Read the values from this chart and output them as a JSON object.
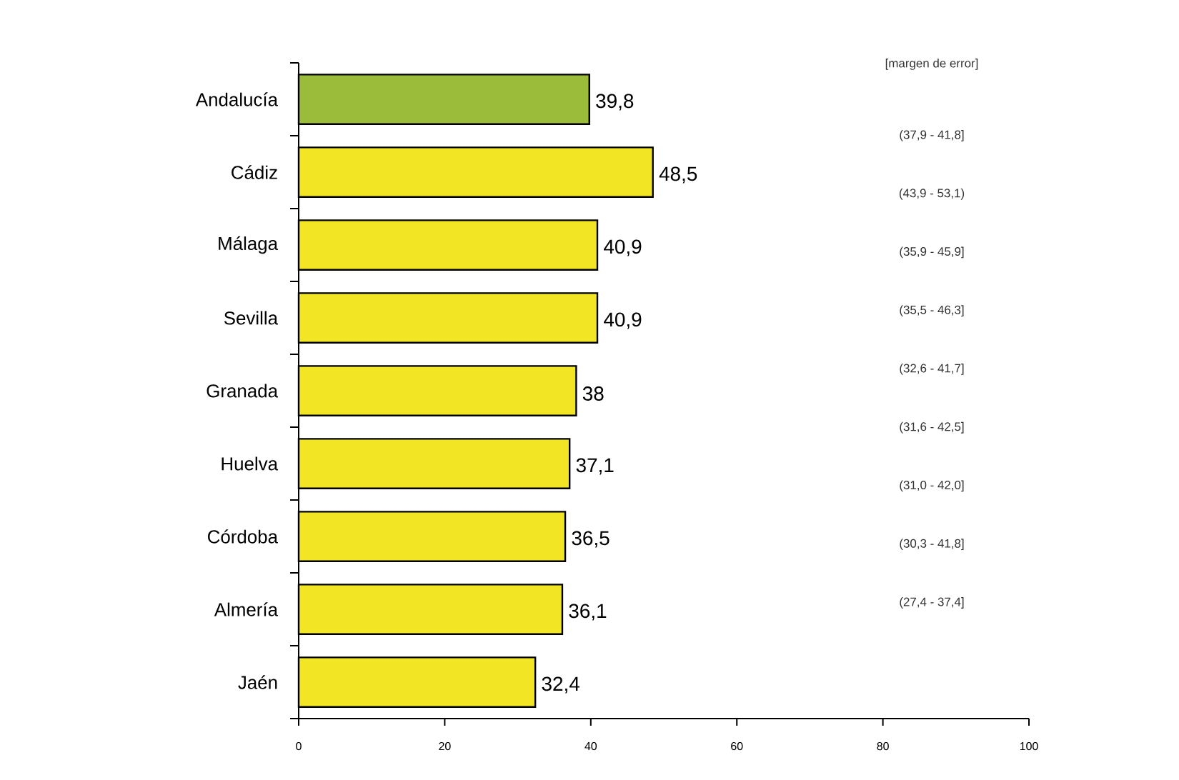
{
  "chart_data": {
    "type": "bar",
    "orientation": "horizontal",
    "categories": [
      "Andalucía",
      "Cádiz",
      "Málaga",
      "Sevilla",
      "Granada",
      "Huelva",
      "Córdoba",
      "Almería",
      "Jaén"
    ],
    "values": [
      39.8,
      48.5,
      40.9,
      40.9,
      38,
      37.1,
      36.5,
      36.1,
      32.4
    ],
    "value_labels": [
      "39,8",
      "48,5",
      "40,9",
      "40,9",
      "38",
      "37,1",
      "36,5",
      "36,1",
      "32,4"
    ],
    "colors": [
      "#9bbb3b",
      "#f2e524",
      "#f2e524",
      "#f2e524",
      "#f2e524",
      "#f2e524",
      "#f2e524",
      "#f2e524",
      "#f2e524"
    ],
    "xlim": [
      0,
      100
    ],
    "xticks": [
      0,
      20,
      40,
      60,
      80,
      100
    ],
    "annotations": [
      "[margen de error]",
      "(37,9 - 41,8]",
      "(43,9 - 53,1)",
      "(35,9 - 45,9]",
      "(35,5 - 46,3]",
      "(32,6 - 41,7]",
      "(31,6 - 42,5]",
      "(31,0 - 42,0]",
      "(30,3 - 41,8]",
      "(27,4 - 37,4]"
    ]
  }
}
